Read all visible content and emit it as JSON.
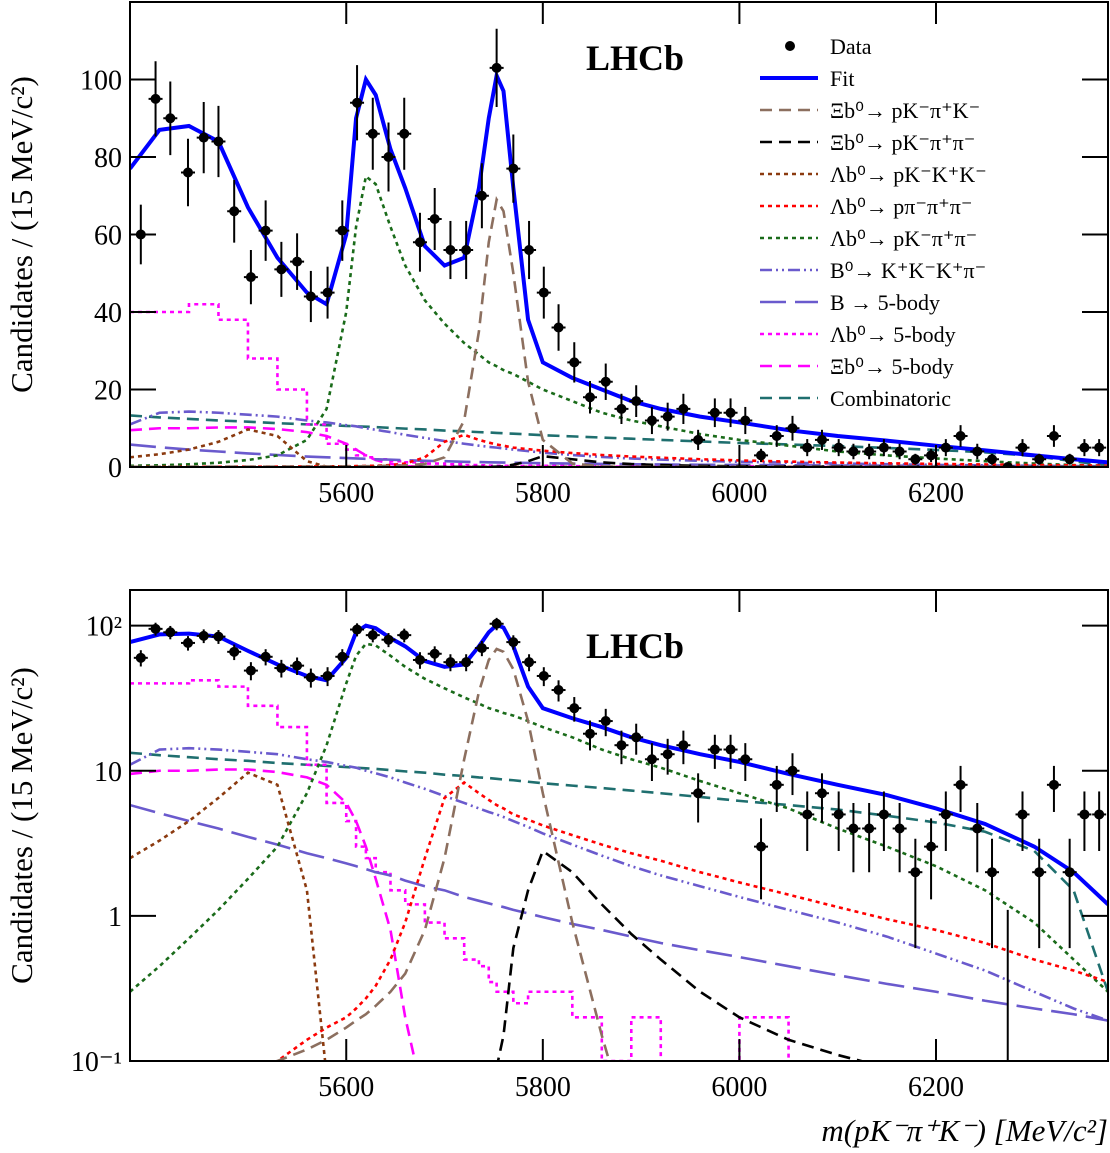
{
  "chart_data": {
    "type": "line",
    "annotation": "LHCb",
    "ylabel": "Candidates / (15 MeV/c²)",
    "xlim": [
      5380,
      6375
    ],
    "xticks": [
      5600,
      5800,
      6000,
      6200
    ],
    "panels": [
      {
        "ylim": [
          0,
          120
        ],
        "yticks": [
          0,
          20,
          40,
          60,
          80,
          100
        ],
        "log": false,
        "legend": "upper right"
      },
      {
        "ylim": [
          0.1,
          176
        ],
        "yticks": [
          {
            "value": 100,
            "label": "10²"
          },
          10,
          1,
          {
            "value": 0.1,
            "label": "10⁻¹"
          }
        ],
        "log": true,
        "xlabel": "m(pK⁻π⁺K⁻) [MeV/c²]"
      }
    ],
    "series": [
      {
        "name": "Data",
        "color": "#000000",
        "style": "points",
        "x": [
          5391,
          5406,
          5421,
          5439,
          5455,
          5470,
          5486,
          5503,
          5518,
          5534,
          5550,
          5564,
          5581,
          5596,
          5611,
          5627,
          5643,
          5659,
          5675,
          5690,
          5706,
          5722,
          5738,
          5753,
          5770,
          5786,
          5801,
          5816,
          5832,
          5848,
          5864,
          5880,
          5895,
          5911,
          5927,
          5943,
          5958,
          5975,
          5991,
          6006,
          6022,
          6038,
          6054,
          6069,
          6084,
          6101,
          6116,
          6132,
          6147,
          6163,
          6179,
          6195,
          6210,
          6225,
          6242,
          6257,
          6273,
          6288,
          6305,
          6320,
          6336,
          6351,
          6366
        ],
        "values": [
          60,
          95,
          90,
          76,
          85,
          84,
          66,
          49,
          61,
          51,
          53,
          44,
          45,
          61,
          94,
          86,
          80,
          86,
          58,
          64,
          56,
          56,
          70,
          103,
          77,
          56,
          45,
          36,
          27,
          18,
          22,
          15,
          17,
          12,
          13,
          15,
          7,
          14,
          14,
          12,
          3,
          8,
          10,
          5,
          7,
          5,
          4,
          4,
          5,
          4,
          2,
          3,
          5,
          8,
          4,
          2,
          0,
          5,
          2,
          8,
          2,
          5,
          5
        ],
        "errors": [
          7.7,
          9.7,
          9.5,
          8.7,
          9.2,
          9.2,
          8.1,
          7,
          7.8,
          7.1,
          7.3,
          6.6,
          6.7,
          7.8,
          9.7,
          9.3,
          8.9,
          9.3,
          7.6,
          8,
          7.5,
          7.5,
          8.4,
          10.1,
          8.8,
          7.5,
          6.7,
          6,
          5.2,
          4.2,
          4.7,
          3.9,
          4.1,
          3.5,
          3.6,
          3.9,
          2.6,
          3.7,
          3.7,
          3.5,
          1.7,
          2.8,
          3.2,
          2.2,
          2.6,
          2.2,
          2,
          2,
          2.2,
          2,
          1.4,
          1.7,
          2.2,
          2.8,
          2,
          1.4,
          1.1,
          2.2,
          1.4,
          2.8,
          1.4,
          2.2,
          2.2
        ]
      },
      {
        "name": "Fit",
        "color": "#0000ff",
        "style": "solid",
        "x": [
          5380,
          5410,
          5440,
          5470,
          5500,
          5530,
          5560,
          5580,
          5600,
          5610,
          5620,
          5630,
          5645,
          5660,
          5680,
          5700,
          5720,
          5735,
          5745,
          5753,
          5760,
          5770,
          5785,
          5800,
          5830,
          5860,
          5890,
          5920,
          5960,
          6000,
          6050,
          6100,
          6150,
          6200,
          6250,
          6300,
          6340,
          6375
        ],
        "values": [
          77,
          87,
          88,
          84,
          67,
          54,
          45,
          42,
          60,
          90,
          100,
          96,
          82,
          72,
          57,
          52,
          54,
          72,
          90,
          101,
          97,
          72,
          38,
          27,
          23,
          20,
          17,
          15,
          13,
          11.5,
          9.5,
          8,
          6.8,
          5.5,
          4.3,
          3,
          2,
          1.2
        ]
      },
      {
        "name": "Ξb⁰→ pK⁻π⁺K⁻",
        "color": "#8c6f5f",
        "style": "dashed",
        "x": [
          5380,
          5410,
          5440,
          5470,
          5500,
          5530,
          5560,
          5580,
          5600,
          5610,
          5620,
          5630,
          5645,
          5660,
          5680,
          5700,
          5720,
          5735,
          5745,
          5753,
          5760,
          5770,
          5785,
          5800,
          5830,
          5860,
          5890,
          5920,
          5960,
          6000,
          6050,
          6100,
          6150,
          6200,
          6250,
          6300,
          6340,
          6375
        ],
        "values": [
          0.05,
          0.06,
          0.07,
          0.08,
          0.09,
          0.1,
          0.12,
          0.14,
          0.17,
          0.19,
          0.21,
          0.24,
          0.3,
          0.4,
          0.8,
          2.5,
          12,
          35,
          58,
          69,
          66,
          50,
          22,
          7,
          0.9,
          0.15,
          0.03,
          0.02,
          0.01,
          0.01,
          0.01,
          0.01,
          0.01,
          0.01,
          0.01,
          0.01,
          0.01,
          0.01
        ]
      },
      {
        "name": "Ξb⁰→ pK⁻π⁺π⁻",
        "color": "#000000",
        "style": "dashed",
        "x": [
          5380,
          5410,
          5440,
          5470,
          5500,
          5530,
          5560,
          5580,
          5600,
          5610,
          5620,
          5630,
          5645,
          5660,
          5680,
          5700,
          5720,
          5735,
          5745,
          5753,
          5760,
          5770,
          5785,
          5800,
          5830,
          5860,
          5890,
          5920,
          5960,
          6000,
          6050,
          6100,
          6150,
          6200,
          6250,
          6300,
          6340,
          6375
        ],
        "values": [
          0.01,
          0.01,
          0.01,
          0.01,
          0.01,
          0.01,
          0.01,
          0.01,
          0.01,
          0.01,
          0.01,
          0.01,
          0.01,
          0.01,
          0.01,
          0.01,
          0.01,
          0.02,
          0.05,
          0.09,
          0.15,
          0.6,
          1.5,
          2.8,
          2.0,
          1.2,
          0.75,
          0.5,
          0.3,
          0.2,
          0.14,
          0.11,
          0.09,
          0.07,
          0.06,
          0.05,
          0.04,
          0.035
        ]
      },
      {
        "name": "Λb⁰→ pK⁻K⁺K⁻",
        "color": "#8b3a0f",
        "style": "dotted",
        "x": [
          5380,
          5410,
          5440,
          5470,
          5500,
          5530,
          5560,
          5580,
          5600,
          5610,
          5620,
          5630,
          5645,
          5660,
          5680,
          5700,
          5720,
          5735,
          5745,
          5753,
          5760,
          5770,
          5785,
          5800,
          5830,
          5860,
          5890,
          5920,
          5960,
          6000,
          6050,
          6100,
          6150,
          6200,
          6250,
          6300,
          6340,
          6375
        ],
        "values": [
          2.5,
          3.3,
          4.5,
          6.5,
          9.7,
          8,
          1.5,
          0.08,
          0.01,
          0.01,
          0.01,
          0.01,
          0.01,
          0.01,
          0.01,
          0.01,
          0.01,
          0.01,
          0.01,
          0.01,
          0.01,
          0.01,
          0.01,
          0.01,
          0.01,
          0.01,
          0.01,
          0.01,
          0.01,
          0.01,
          0.01,
          0.01,
          0.01,
          0.01,
          0.01,
          0.01,
          0.01,
          0.01
        ]
      },
      {
        "name": "Λb⁰→ pπ⁻π⁺π⁻",
        "color": "#ff0000",
        "style": "dotted",
        "x": [
          5380,
          5410,
          5440,
          5470,
          5500,
          5530,
          5560,
          5580,
          5600,
          5610,
          5620,
          5630,
          5645,
          5660,
          5680,
          5700,
          5720,
          5735,
          5745,
          5753,
          5760,
          5770,
          5785,
          5800,
          5830,
          5860,
          5890,
          5920,
          5960,
          6000,
          6050,
          6100,
          6150,
          6200,
          6250,
          6300,
          6340,
          6375
        ],
        "values": [
          0.02,
          0.03,
          0.04,
          0.06,
          0.08,
          0.1,
          0.14,
          0.17,
          0.2,
          0.23,
          0.27,
          0.33,
          0.5,
          0.9,
          2.5,
          6.5,
          8.3,
          7,
          6.3,
          5.8,
          5.5,
          5,
          4.6,
          4.2,
          3.6,
          3.1,
          2.7,
          2.4,
          2.0,
          1.7,
          1.4,
          1.15,
          0.95,
          0.8,
          0.65,
          0.5,
          0.42,
          0.35
        ]
      },
      {
        "name": "Λb⁰→ pK⁻π⁺π⁻",
        "color": "#1a6b1a",
        "style": "dotted",
        "x": [
          5380,
          5410,
          5440,
          5470,
          5500,
          5530,
          5560,
          5580,
          5600,
          5610,
          5620,
          5630,
          5645,
          5660,
          5680,
          5700,
          5720,
          5735,
          5745,
          5753,
          5760,
          5770,
          5785,
          5800,
          5830,
          5860,
          5890,
          5920,
          5960,
          6000,
          6050,
          6100,
          6150,
          6200,
          6250,
          6300,
          6340,
          6375
        ],
        "values": [
          0.3,
          0.45,
          0.7,
          1.1,
          1.8,
          3,
          7,
          15,
          40,
          62,
          75,
          73,
          62,
          52,
          43,
          37,
          32,
          29,
          27,
          26,
          25,
          24,
          22,
          20,
          17,
          14,
          12,
          10.5,
          8.5,
          7,
          5.5,
          4,
          3,
          2.2,
          1.5,
          0.9,
          0.5,
          0.3
        ]
      },
      {
        "name": "B⁰→ K⁺K⁻K⁺π⁻",
        "color": "#6a5acd",
        "style": "dashdotdot",
        "x": [
          5380,
          5410,
          5440,
          5470,
          5500,
          5530,
          5560,
          5580,
          5600,
          5610,
          5620,
          5630,
          5645,
          5660,
          5680,
          5700,
          5720,
          5735,
          5745,
          5753,
          5760,
          5770,
          5785,
          5800,
          5830,
          5860,
          5890,
          5920,
          5960,
          6000,
          6050,
          6100,
          6150,
          6200,
          6250,
          6300,
          6340,
          6375
        ],
        "values": [
          11,
          14,
          14.3,
          14,
          13.5,
          13,
          12,
          11.5,
          10.8,
          10.5,
          10,
          9.6,
          9,
          8.3,
          7.5,
          6.7,
          6,
          5.5,
          5.2,
          5,
          4.8,
          4.5,
          4.1,
          3.7,
          3.1,
          2.6,
          2.2,
          1.9,
          1.6,
          1.35,
          1.1,
          0.9,
          0.72,
          0.55,
          0.42,
          0.3,
          0.23,
          0.19
        ]
      },
      {
        "name": "B → 5-body",
        "color": "#6a5acd",
        "style": "longdash",
        "x": [
          5380,
          5410,
          5440,
          5470,
          5500,
          5530,
          5560,
          5580,
          5600,
          5610,
          5620,
          5630,
          5645,
          5660,
          5680,
          5700,
          5720,
          5735,
          5745,
          5753,
          5760,
          5770,
          5785,
          5800,
          5830,
          5860,
          5890,
          5920,
          5960,
          6000,
          6050,
          6100,
          6150,
          6200,
          6250,
          6300,
          6340,
          6375
        ],
        "values": [
          5.8,
          5.1,
          4.5,
          4,
          3.5,
          3.1,
          2.7,
          2.5,
          2.3,
          2.2,
          2.1,
          2.0,
          1.9,
          1.75,
          1.6,
          1.5,
          1.35,
          1.27,
          1.22,
          1.18,
          1.15,
          1.1,
          1.04,
          0.98,
          0.88,
          0.8,
          0.72,
          0.65,
          0.58,
          0.52,
          0.45,
          0.39,
          0.34,
          0.3,
          0.26,
          0.23,
          0.21,
          0.19
        ]
      },
      {
        "name": "Λb⁰→ 5-body",
        "color": "#ff00ff",
        "style": "dotted",
        "drawstyle": "steps",
        "x": [
          5380,
          5410,
          5440,
          5470,
          5500,
          5530,
          5560,
          5580,
          5600,
          5610,
          5620,
          5630,
          5645,
          5660,
          5680,
          5700,
          5720,
          5735,
          5745,
          5753,
          5760,
          5770,
          5785,
          5800,
          5830,
          5860,
          5890,
          5920,
          5960,
          6000,
          6050,
          6100,
          6150,
          6200,
          6250,
          6300,
          6340,
          6375
        ],
        "values": [
          40,
          40,
          42,
          38,
          28,
          20,
          11,
          6,
          4.5,
          3,
          2.5,
          2,
          1.5,
          1.2,
          0.9,
          0.7,
          0.5,
          0.45,
          0.35,
          0.3,
          0.3,
          0.25,
          0.3,
          0.3,
          0.2,
          0.1,
          0.2,
          0.05,
          0.05,
          0.2,
          0.05,
          0.05,
          0.05,
          0.05,
          0.05,
          0.05,
          0.05,
          0.05
        ]
      },
      {
        "name": "Ξb⁰→ 5-body",
        "color": "#ff00ff",
        "style": "dashed",
        "x": [
          5380,
          5410,
          5440,
          5470,
          5500,
          5530,
          5560,
          5580,
          5600,
          5610,
          5620,
          5630,
          5645,
          5660,
          5680,
          5700,
          5720,
          5735,
          5745,
          5753,
          5760,
          5770,
          5785,
          5800,
          5830,
          5860,
          5890,
          5920,
          5960,
          6000,
          6050,
          6100,
          6150,
          6200,
          6250,
          6300,
          6340,
          6375
        ],
        "values": [
          9.5,
          10,
          10,
          10.2,
          10.2,
          9.8,
          9,
          8,
          6,
          4.5,
          3,
          1.8,
          0.8,
          0.2,
          0.05,
          0.01,
          0.01,
          0.01,
          0.01,
          0.01,
          0.01,
          0.01,
          0.01,
          0.01,
          0.01,
          0.01,
          0.01,
          0.01,
          0.01,
          0.01,
          0.01,
          0.01,
          0.01,
          0.01,
          0.01,
          0.01,
          0.01,
          0.01
        ]
      },
      {
        "name": "Combinatoric",
        "color": "#1f6f6f",
        "style": "dashed",
        "x": [
          5380,
          5410,
          5440,
          5470,
          5500,
          5530,
          5560,
          5580,
          5600,
          5610,
          5620,
          5630,
          5645,
          5660,
          5680,
          5700,
          5720,
          5735,
          5745,
          5753,
          5760,
          5770,
          5785,
          5800,
          5830,
          5860,
          5890,
          5920,
          5960,
          6000,
          6050,
          6100,
          6150,
          6200,
          6250,
          6300,
          6340,
          6375
        ],
        "values": [
          13.3,
          12.8,
          12.4,
          12,
          11.7,
          11.3,
          11,
          10.8,
          10.6,
          10.5,
          10.4,
          10.3,
          10.1,
          9.9,
          9.7,
          9.4,
          9.2,
          9,
          8.9,
          8.8,
          8.7,
          8.6,
          8.4,
          8.2,
          7.9,
          7.6,
          7.3,
          7,
          6.6,
          6.2,
          5.8,
          5.4,
          4.9,
          4.4,
          3.8,
          2.8,
          1.5,
          0.3
        ]
      }
    ]
  }
}
